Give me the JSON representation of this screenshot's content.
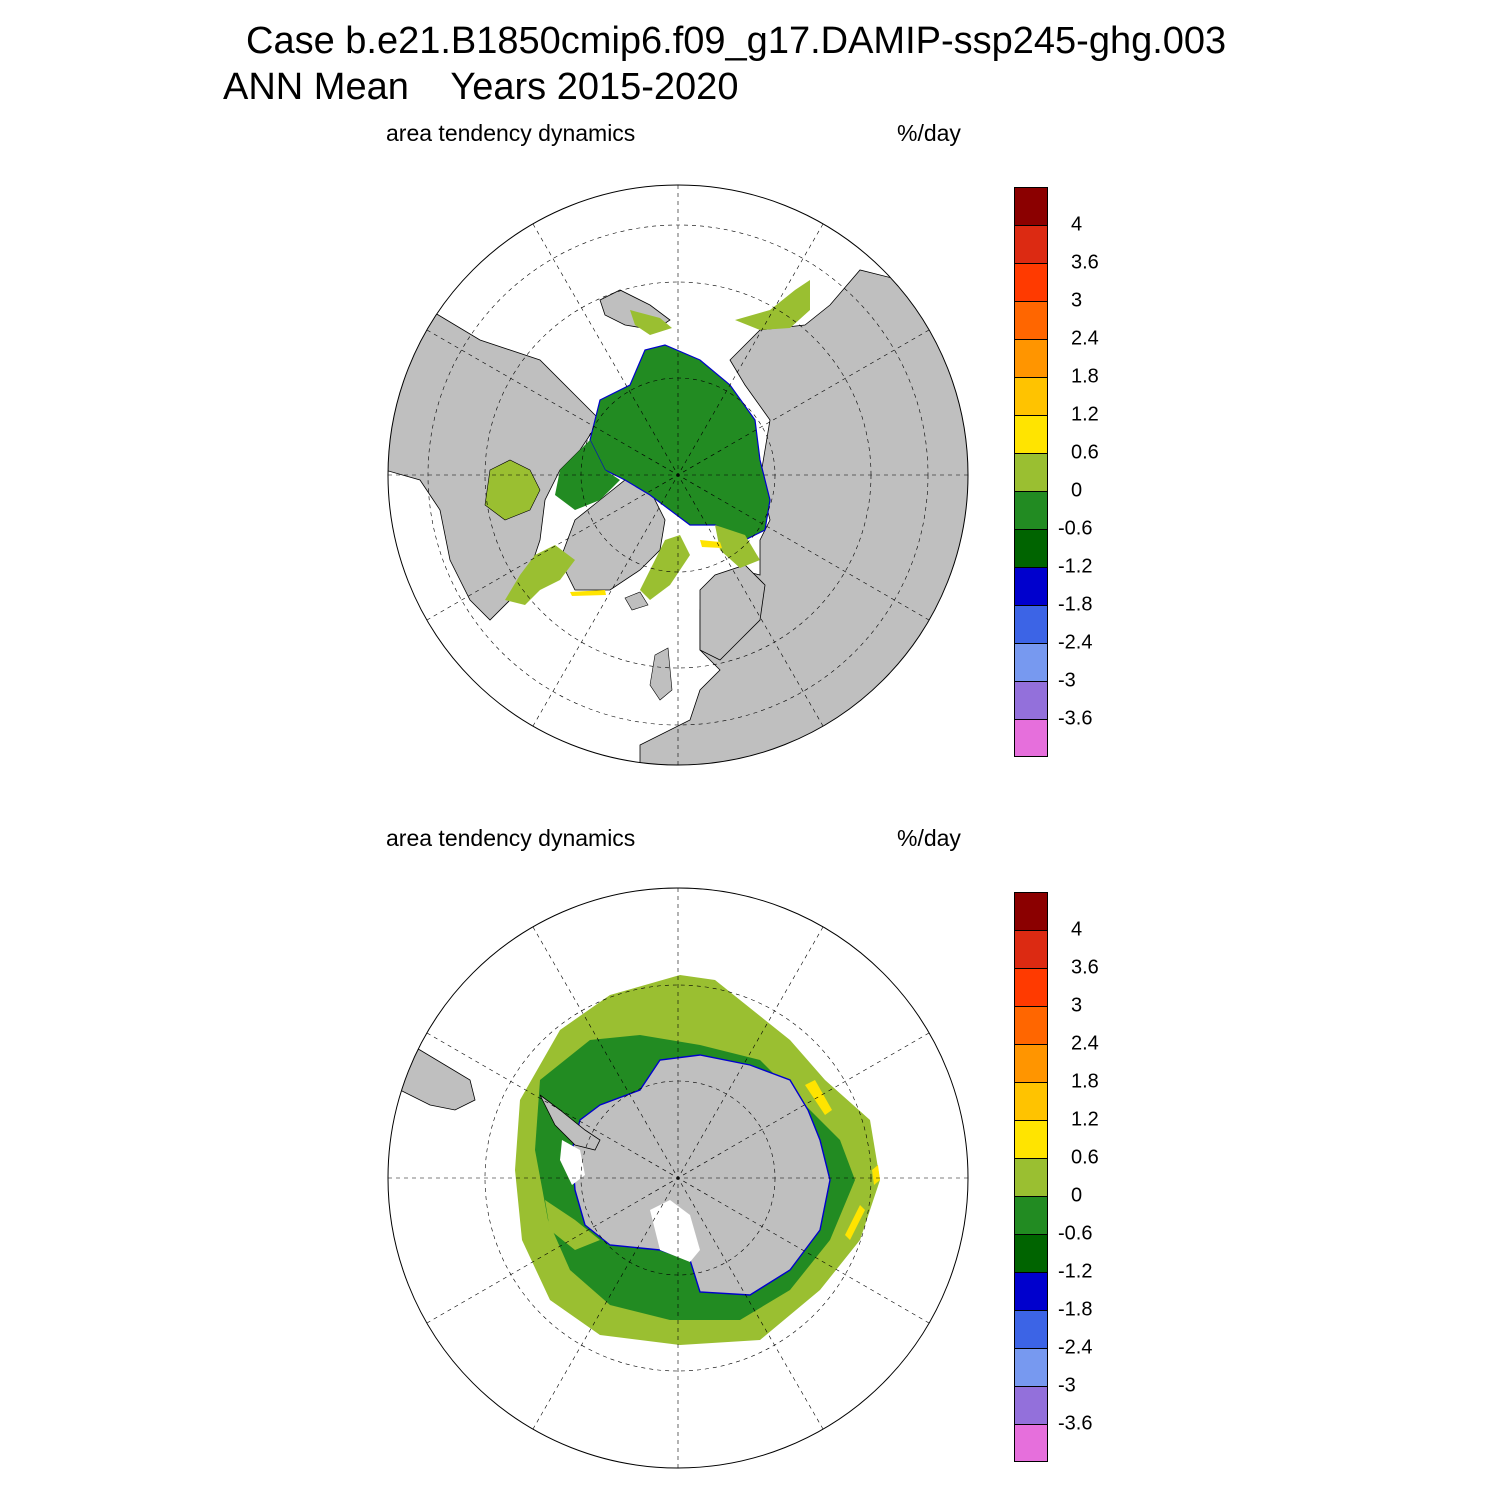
{
  "title_line1": "Case b.e21.B1850cmip6.f09_g17.DAMIP-ssp245-ghg.003",
  "title_line2_mean": "ANN Mean",
  "title_line2_years": "Years 2015-2020",
  "panels": [
    {
      "id": "north",
      "hemisphere": "Arctic",
      "variable": "area tendency dynamics",
      "units": "%/day"
    },
    {
      "id": "south",
      "hemisphere": "Antarctic",
      "variable": "area tendency dynamics",
      "units": "%/day"
    }
  ],
  "colorbar": {
    "labels": [
      "4",
      "3.6",
      "3",
      "2.4",
      "1.8",
      "1.2",
      "0.6",
      "0",
      "-0.6",
      "-1.2",
      "-1.8",
      "-2.4",
      "-3",
      "-3.6"
    ],
    "colors": [
      "#8b0000",
      "#dc2a12",
      "#ff3a00",
      "#ff6600",
      "#ff9500",
      "#ffc300",
      "#ffe400",
      "#9abf31",
      "#228b22",
      "#006400",
      "#0000cd",
      "#3c64e6",
      "#7799f0",
      "#9370db",
      "#e66fdc"
    ]
  },
  "colors": {
    "land": "#bfbfbf",
    "ice_shelf_white": "#ffffff",
    "light_green": "#9abf31",
    "green": "#228b22",
    "dark_green": "#006400",
    "yellow": "#ffe400",
    "blue": "#0000cd"
  }
}
